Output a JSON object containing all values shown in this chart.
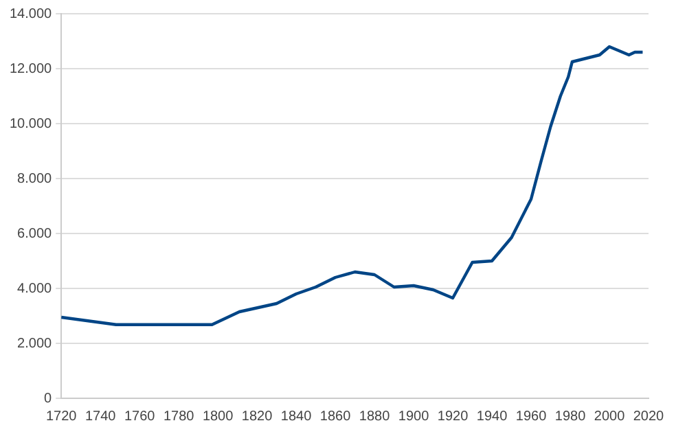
{
  "chart_data": {
    "type": "line",
    "x": [
      1720,
      1748,
      1797,
      1811,
      1830,
      1840,
      1850,
      1860,
      1870,
      1880,
      1890,
      1900,
      1910,
      1920,
      1930,
      1940,
      1950,
      1960,
      1965,
      1970,
      1975,
      1979,
      1981,
      1995,
      2000,
      2010,
      2013,
      2017
    ],
    "series": [
      {
        "color": "#004586",
        "values": [
          2950,
          2680,
          2680,
          3150,
          3450,
          3800,
          4050,
          4400,
          4600,
          4500,
          4050,
          4100,
          3950,
          3650,
          4950,
          5000,
          5850,
          7250,
          8600,
          9900,
          11000,
          11700,
          12250,
          12500,
          12800,
          12500,
          12600,
          12600
        ]
      }
    ],
    "xlim": [
      1720,
      2020
    ],
    "xticks": [
      1720,
      1740,
      1760,
      1780,
      1800,
      1820,
      1840,
      1860,
      1880,
      1900,
      1920,
      1940,
      1960,
      1980,
      2000,
      2020
    ],
    "ylim": [
      0,
      14000
    ],
    "yticks": [
      0,
      {
        "value": 2000,
        "label": "2.000"
      },
      {
        "value": 4000,
        "label": "4.000"
      },
      {
        "value": 6000,
        "label": "6.000"
      },
      {
        "value": 8000,
        "label": "8.000"
      },
      {
        "value": 10000,
        "label": "10.000"
      },
      {
        "value": 12000,
        "label": "12.000"
      },
      {
        "value": 14000,
        "label": "14.000"
      }
    ],
    "grid": "y",
    "legend": false,
    "marker": "none",
    "line_style": "solid"
  }
}
